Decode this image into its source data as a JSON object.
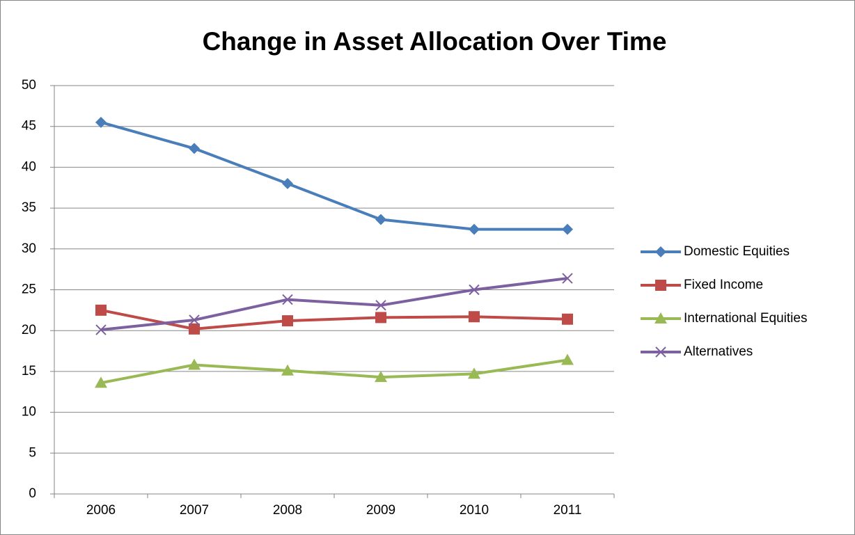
{
  "chart_data": {
    "type": "line",
    "title": "Change in Asset Allocation Over Time",
    "categories": [
      "2006",
      "2007",
      "2008",
      "2009",
      "2010",
      "2011"
    ],
    "series": [
      {
        "name": "Domestic Equities",
        "color": "#4a7ebb",
        "marker": "diamond",
        "values": [
          45.5,
          42.3,
          38.0,
          33.6,
          32.4,
          32.4
        ]
      },
      {
        "name": "Fixed Income",
        "color": "#be4b48",
        "marker": "square",
        "values": [
          22.5,
          20.2,
          21.2,
          21.6,
          21.7,
          21.4
        ]
      },
      {
        "name": "International Equities",
        "color": "#98b954",
        "marker": "triangle",
        "values": [
          13.6,
          15.8,
          15.1,
          14.3,
          14.7,
          16.4
        ]
      },
      {
        "name": "Alternatives",
        "color": "#7d60a0",
        "marker": "x",
        "values": [
          20.1,
          21.3,
          23.8,
          23.1,
          25.0,
          26.4
        ]
      }
    ],
    "ylim": [
      0,
      50
    ],
    "yticks": [
      0,
      5,
      10,
      15,
      20,
      25,
      30,
      35,
      40,
      45,
      50
    ],
    "grid": true,
    "legend": "right"
  }
}
